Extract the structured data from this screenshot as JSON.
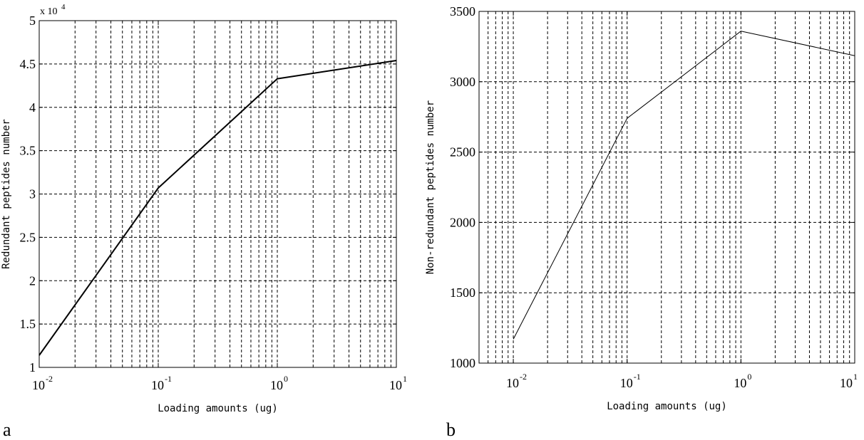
{
  "chart_data": [
    {
      "panel_label": "a",
      "type": "line",
      "x_scale": "log",
      "xlabel": "Loading amounts (ug)",
      "ylabel": "Redundant peptides number",
      "y_multiplier_label": "x 10",
      "y_multiplier_exponent": "4",
      "xlim": [
        0.01,
        10
      ],
      "ylim": [
        1,
        5
      ],
      "x_ticks": [
        0.01,
        0.1,
        1,
        10
      ],
      "x_tick_labels": [
        {
          "base": "10",
          "exp": "-2"
        },
        {
          "base": "10",
          "exp": "-1"
        },
        {
          "base": "10",
          "exp": "0"
        },
        {
          "base": "10",
          "exp": "1"
        }
      ],
      "y_ticks": [
        1,
        1.5,
        2,
        2.5,
        3,
        3.5,
        4,
        4.5,
        5
      ],
      "y_tick_labels": [
        "1",
        "1.5",
        "2",
        "2.5",
        "3",
        "3.5",
        "4",
        "4.5",
        "5"
      ],
      "grid": true,
      "line_width": 2,
      "series": [
        {
          "x": [
            0.01,
            0.1,
            1,
            10
          ],
          "y": [
            1.14,
            3.07,
            4.33,
            4.54
          ]
        }
      ]
    },
    {
      "panel_label": "b",
      "type": "line",
      "x_scale": "log",
      "xlabel": "Loading amounts (ug)",
      "ylabel": "Non-redundant peptides number",
      "xlim": [
        0.005,
        10
      ],
      "ylim": [
        1000,
        3500
      ],
      "x_ticks": [
        0.01,
        0.1,
        1,
        10
      ],
      "x_tick_labels": [
        {
          "base": "10",
          "exp": "-2"
        },
        {
          "base": "10",
          "exp": "-1"
        },
        {
          "base": "10",
          "exp": "0"
        },
        {
          "base": "10",
          "exp": "1"
        }
      ],
      "y_ticks": [
        1000,
        1500,
        2000,
        2500,
        3000,
        3500
      ],
      "y_tick_labels": [
        "1000",
        "1500",
        "2000",
        "2500",
        "3000",
        "3500"
      ],
      "grid": true,
      "line_width": 1,
      "series": [
        {
          "x": [
            0.01,
            0.1,
            1,
            10
          ],
          "y": [
            1170,
            2740,
            3360,
            3185
          ]
        }
      ]
    }
  ]
}
